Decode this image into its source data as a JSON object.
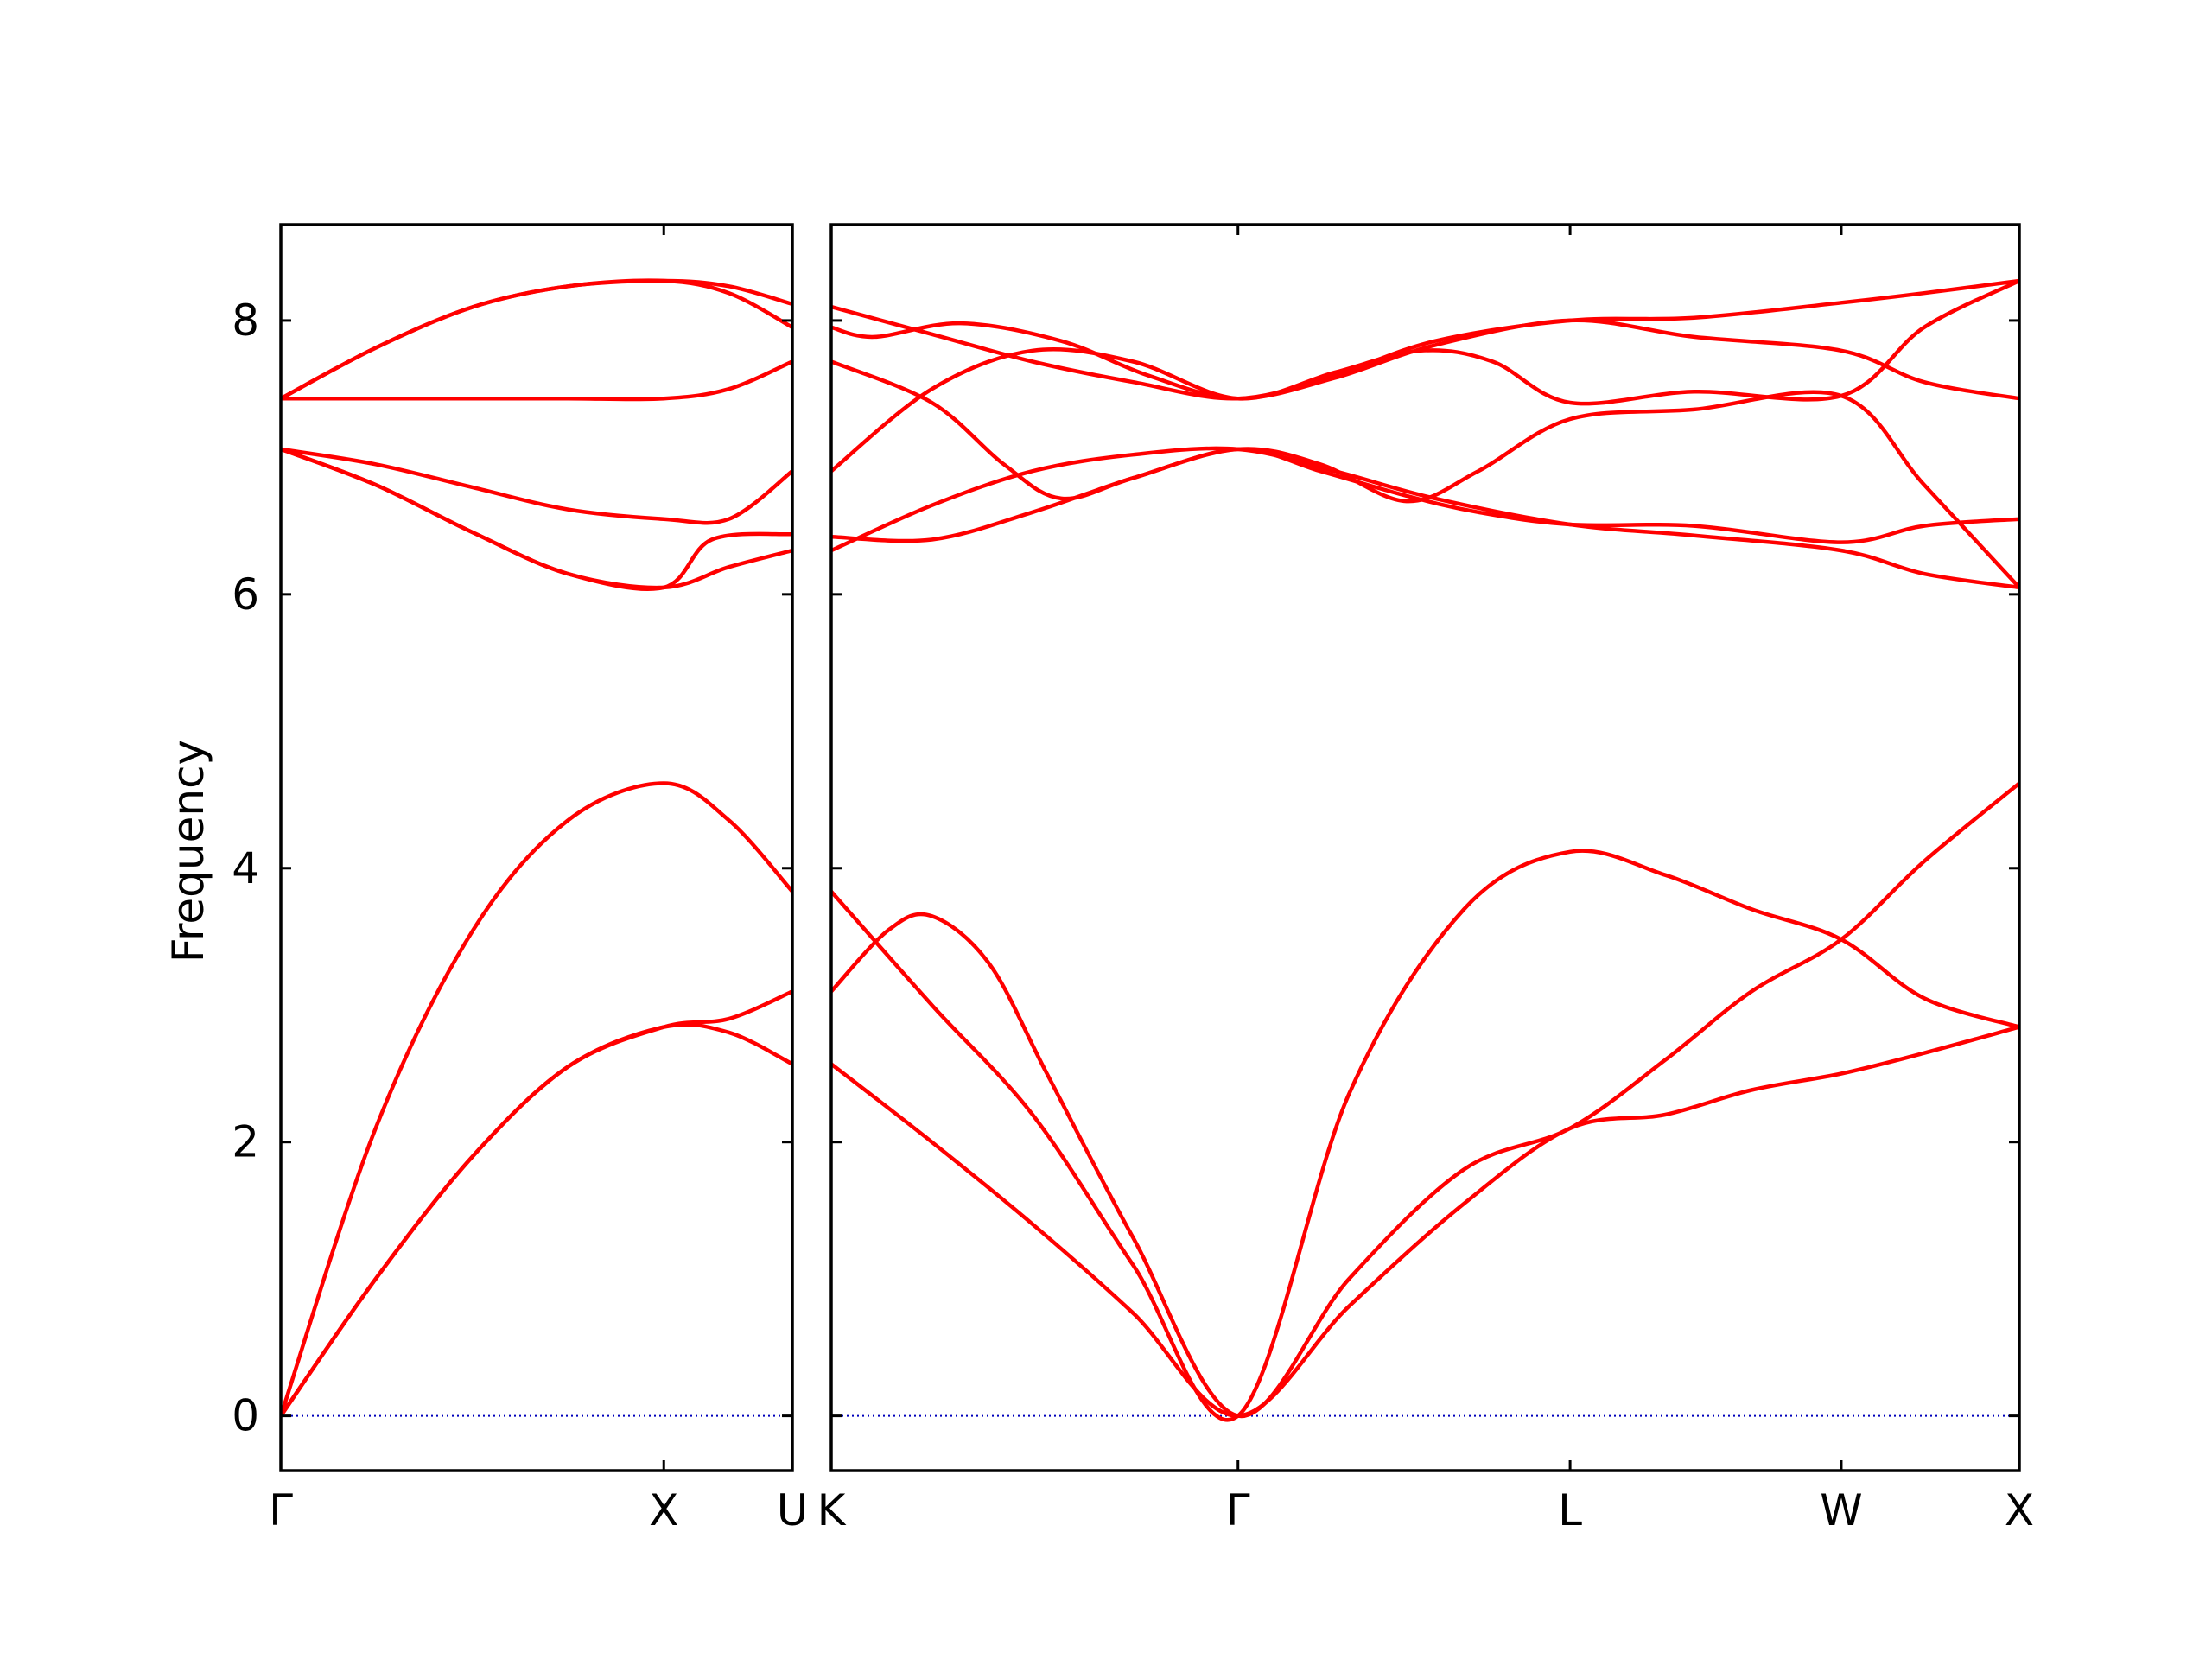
{
  "chart_data": {
    "type": "line",
    "title": "",
    "ylabel": "Frequency",
    "ylim": [
      -0.4,
      8.7
    ],
    "y_ticks": [
      "0",
      "2",
      "4",
      "6",
      "8"
    ],
    "y_tick_values": [
      0,
      2,
      4,
      6,
      8
    ],
    "grid": false,
    "legend": "none",
    "colors": {
      "bands": "#ff0000",
      "zero_line": "#0000bb",
      "axes": "#000000"
    },
    "panels": [
      {
        "name": "Γ-X-U",
        "x_range": [
          0,
          1.7808
        ],
        "x_ticks": [
          {
            "label": "Γ",
            "x": 0
          },
          {
            "label": "X",
            "x": 1.3333
          },
          {
            "label": "U",
            "x": 1.7808
          }
        ],
        "series": [
          {
            "x": [
              0,
              0.33,
              0.67,
              1.0,
              1.3333,
              1.56,
              1.7808
            ],
            "y": [
              0.0,
              1.0,
              1.9,
              2.55,
              2.84,
              2.8,
              2.57
            ]
          },
          {
            "x": [
              0,
              0.33,
              0.67,
              1.0,
              1.3333,
              1.56,
              1.7808
            ],
            "y": [
              0.0,
              2.1,
              3.55,
              4.35,
              4.62,
              4.35,
              3.83
            ]
          },
          {
            "x": [
              0,
              0.33,
              0.67,
              1.0,
              1.3333,
              1.56,
              1.7808
            ],
            "y": [
              0.0,
              1.0,
              1.9,
              2.55,
              2.84,
              2.9,
              3.1
            ]
          },
          {
            "x": [
              0,
              0.33,
              0.67,
              1.0,
              1.3333,
              1.56,
              1.7808
            ],
            "y": [
              7.06,
              6.8,
              6.45,
              6.15,
              6.05,
              6.2,
              6.32
            ]
          },
          {
            "x": [
              0,
              0.33,
              0.67,
              1.0,
              1.3333,
              1.56,
              1.7808
            ],
            "y": [
              7.06,
              6.95,
              6.78,
              6.62,
              6.55,
              6.55,
              6.9
            ]
          },
          {
            "x": [
              0,
              0.33,
              0.67,
              1.0,
              1.3333,
              1.5,
              1.7808
            ],
            "y": [
              7.06,
              6.8,
              6.45,
              6.15,
              6.05,
              6.4,
              6.44
            ]
          },
          {
            "x": [
              0,
              0.33,
              0.67,
              1.0,
              1.3333,
              1.56,
              1.7808
            ],
            "y": [
              7.43,
              7.43,
              7.43,
              7.43,
              7.43,
              7.5,
              7.7
            ]
          },
          {
            "x": [
              0,
              0.33,
              0.67,
              1.0,
              1.3333,
              1.56,
              1.7808
            ],
            "y": [
              7.43,
              7.8,
              8.1,
              8.25,
              8.29,
              8.2,
              7.95
            ]
          },
          {
            "x": [
              0,
              0.33,
              0.67,
              1.0,
              1.3333,
              1.56,
              1.7808
            ],
            "y": [
              7.43,
              7.8,
              8.1,
              8.25,
              8.29,
              8.25,
              8.12
            ]
          }
        ]
      },
      {
        "name": "K-Γ-L-W-X",
        "x_range": [
          0,
          4.1308
        ],
        "x_ticks": [
          {
            "label": "K",
            "x": 0
          },
          {
            "label": "Γ",
            "x": 1.4142
          },
          {
            "label": "L",
            "x": 2.5689
          },
          {
            "label": "W",
            "x": 3.5118
          },
          {
            "label": "X",
            "x": 4.1308
          }
        ],
        "series": [
          {
            "x": [
              0,
              0.35,
              0.7,
              1.05,
              1.4142,
              1.8,
              2.2,
              2.5689,
              2.9,
              3.2,
              3.5118,
              3.8,
              4.1308
            ],
            "y": [
              2.57,
              2.0,
              1.4,
              0.75,
              0.0,
              0.8,
              1.55,
              2.1,
              2.2,
              2.38,
              2.5,
              2.65,
              2.84
            ]
          },
          {
            "x": [
              0,
              0.35,
              0.7,
              1.05,
              1.4142,
              1.8,
              2.2,
              2.5689,
              2.9,
              3.2,
              3.5118,
              3.8,
              4.1308
            ],
            "y": [
              3.83,
              3.0,
              2.2,
              1.1,
              0.0,
              2.35,
              3.7,
              4.12,
              3.95,
              3.7,
              3.48,
              3.05,
              2.84
            ]
          },
          {
            "x": [
              0,
              0.2,
              0.35,
              0.55,
              0.75,
              1.05,
              1.4142,
              1.8,
              2.2,
              2.5689,
              2.9,
              3.2,
              3.5118,
              3.8,
              4.1308
            ],
            "y": [
              3.1,
              3.55,
              3.65,
              3.3,
              2.5,
              1.3,
              0.0,
              1.0,
              1.8,
              2.1,
              2.6,
              3.1,
              3.48,
              4.05,
              4.62
            ]
          },
          {
            "x": [
              0,
              0.35,
              0.7,
              1.05,
              1.4142,
              1.75,
              2.1,
              2.5689,
              3.0,
              3.5118,
              3.8,
              4.1308
            ],
            "y": [
              6.32,
              6.65,
              6.9,
              7.02,
              7.06,
              6.9,
              6.7,
              6.51,
              6.43,
              6.32,
              6.15,
              6.05
            ]
          },
          {
            "x": [
              0,
              0.35,
              0.7,
              1.05,
              1.4142,
              1.7,
              2.0,
              2.25,
              2.5689,
              3.0,
              3.5118,
              3.8,
              4.1308
            ],
            "y": [
              6.42,
              6.4,
              6.6,
              6.85,
              7.06,
              6.95,
              6.68,
              6.9,
              7.28,
              7.35,
              7.45,
              6.8,
              6.05
            ]
          },
          {
            "x": [
              0,
              0.35,
              0.6,
              0.8,
              1.05,
              1.4142,
              1.7,
              2.0,
              2.25,
              2.5689,
              3.0,
              3.5118,
              3.8,
              4.1308
            ],
            "y": [
              7.7,
              7.4,
              6.95,
              6.7,
              6.85,
              7.06,
              6.9,
              6.72,
              6.6,
              6.51,
              6.5,
              6.38,
              6.5,
              6.55
            ]
          },
          {
            "x": [
              0,
              0.35,
              0.7,
              1.05,
              1.4142,
              1.75,
              2.05,
              2.3,
              2.5689,
              3.0,
              3.5118,
              3.8,
              4.1308
            ],
            "y": [
              6.9,
              7.5,
              7.78,
              7.7,
              7.43,
              7.62,
              7.78,
              7.7,
              7.4,
              7.48,
              7.45,
              7.95,
              8.29
            ]
          },
          {
            "x": [
              0,
              0.35,
              0.7,
              1.05,
              1.4142,
              1.75,
              2.1,
              2.5689,
              3.0,
              3.5118,
              3.8,
              4.1308
            ],
            "y": [
              8.1,
              7.9,
              7.7,
              7.55,
              7.43,
              7.6,
              7.85,
              8.0,
              8.02,
              8.13,
              8.2,
              8.29
            ]
          },
          {
            "x": [
              0,
              0.15,
              0.45,
              0.8,
              1.1,
              1.4142,
              1.75,
              2.1,
              2.5689,
              3.0,
              3.5118,
              3.8,
              4.1308
            ],
            "y": [
              7.95,
              7.88,
              7.98,
              7.85,
              7.6,
              7.43,
              7.58,
              7.82,
              8.0,
              7.88,
              7.78,
              7.55,
              7.43
            ]
          }
        ]
      }
    ]
  }
}
